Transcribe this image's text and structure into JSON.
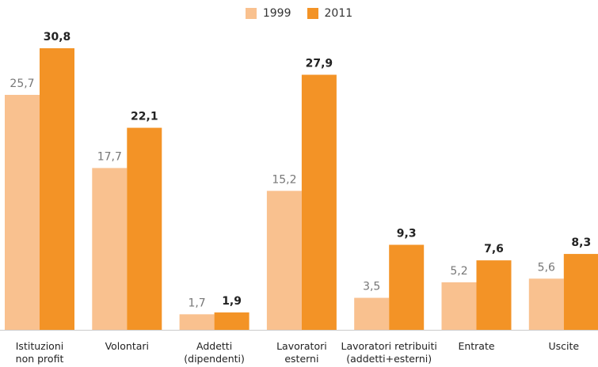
{
  "chart_data": {
    "type": "bar",
    "categories": [
      [
        "Istituzioni",
        "non profit"
      ],
      [
        "Volontari"
      ],
      [
        "Addetti",
        "(dipendenti)"
      ],
      [
        "Lavoratori",
        "esterni"
      ],
      [
        "Lavoratori retribuiti",
        "(addetti+esterni)"
      ],
      [
        "Entrate"
      ],
      [
        "Uscite"
      ]
    ],
    "series": [
      {
        "name": "1999",
        "color": "#f9c18f",
        "values": [
          25.7,
          17.7,
          1.7,
          15.2,
          3.5,
          5.2,
          5.6
        ],
        "labels": [
          "25,7",
          "17,7",
          "1,7",
          "15,2",
          "3,5",
          "5,2",
          "5,6"
        ]
      },
      {
        "name": "2011",
        "color": "#f39326",
        "values": [
          30.8,
          22.1,
          1.9,
          27.9,
          9.3,
          7.6,
          8.3
        ],
        "labels": [
          "30,8",
          "22,1",
          "1,9",
          "27,9",
          "9,3",
          "7,6",
          "8,3"
        ]
      }
    ],
    "ylim": [
      0,
      34
    ],
    "grid": false,
    "legend_position": "top-center"
  }
}
